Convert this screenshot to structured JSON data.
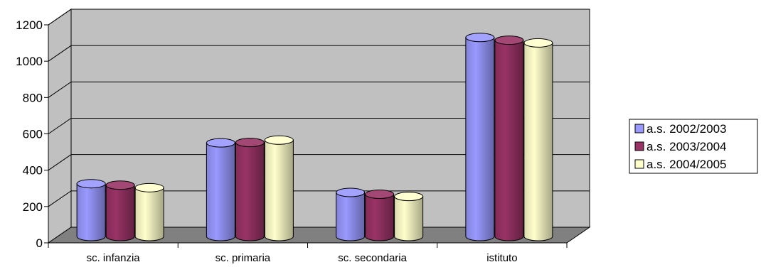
{
  "chart_data": {
    "type": "bar",
    "title": "",
    "xlabel": "",
    "ylabel": "",
    "categories": [
      "sc. infanzia",
      "sc. primaria",
      "sc. secondaria",
      "istituto"
    ],
    "series": [
      {
        "name": "a.s. 2002/2003",
        "color": "#9999FF",
        "values": [
          310,
          535,
          262,
          1115
        ]
      },
      {
        "name": "a.s. 2003/2004",
        "color": "#993366",
        "values": [
          302,
          537,
          252,
          1100
        ]
      },
      {
        "name": "a.s. 2004/2005",
        "color": "#FFFFCC",
        "values": [
          288,
          550,
          240,
          1085
        ]
      }
    ],
    "ylim": [
      0,
      1200
    ],
    "yticks": [
      0,
      200,
      400,
      600,
      800,
      1000,
      1200
    ],
    "grid": true,
    "legend_position": "right",
    "bar_shape": "cylinder-3d",
    "wall_color": "#C0C0C0",
    "floor_color": "#808080"
  }
}
